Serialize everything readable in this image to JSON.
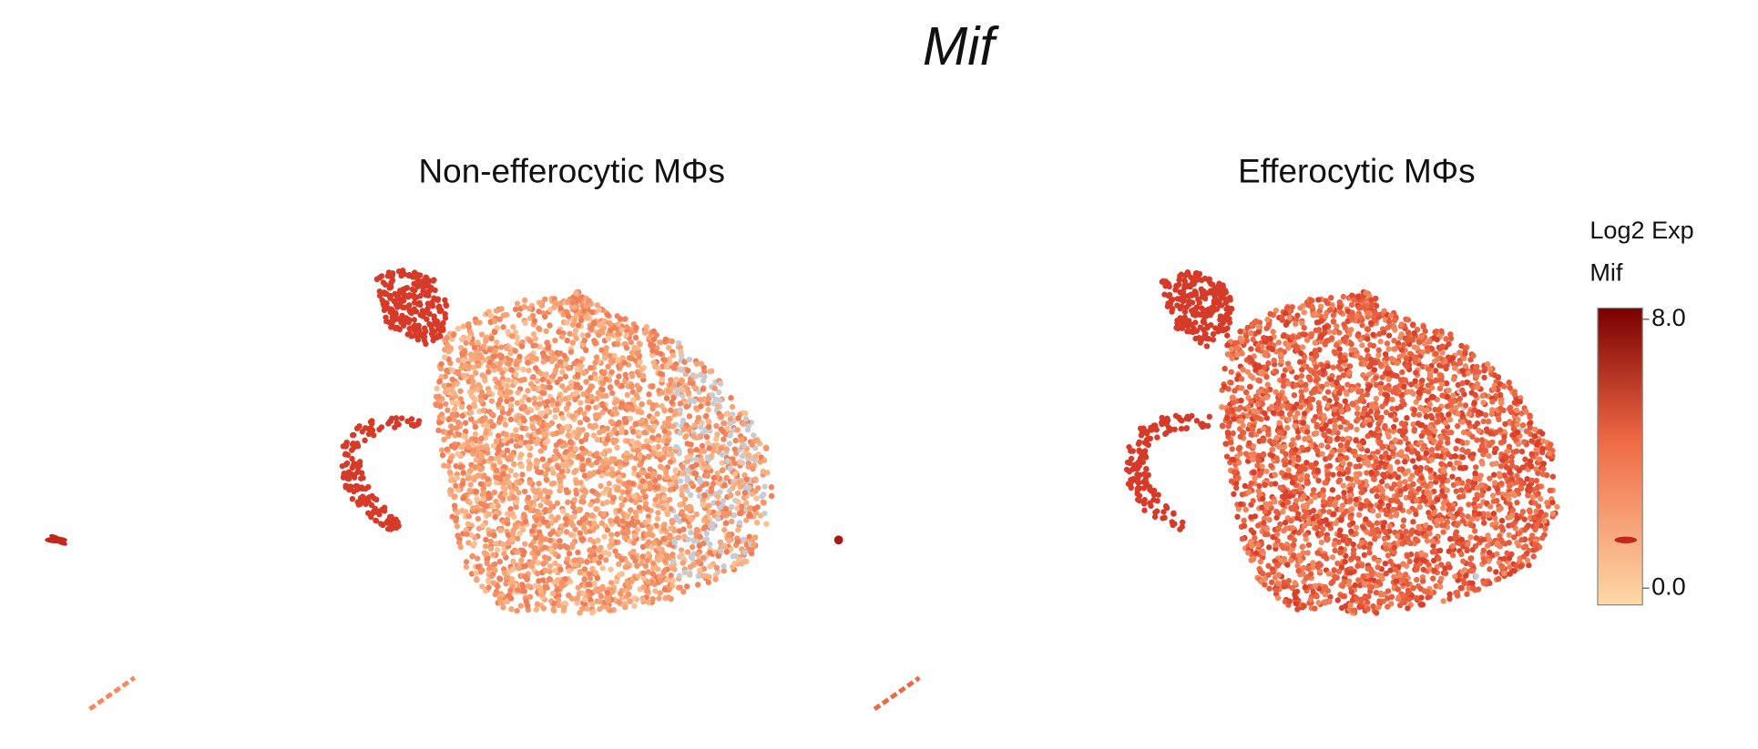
{
  "chart_data": {
    "type": "umap",
    "title": "Mif",
    "panels": [
      "Non-efferocytic MΦs",
      "Efferocytic MΦs"
    ],
    "colorbar": {
      "title": [
        "Log2 Exp",
        "Mif"
      ],
      "lim": [
        0,
        8
      ],
      "ticks": [
        {
          "value": 8,
          "label": "8.0"
        },
        {
          "value": 0,
          "label": "0.0"
        }
      ],
      "colors": [
        "#fdd9a8",
        "#7a0000"
      ]
    }
  }
}
